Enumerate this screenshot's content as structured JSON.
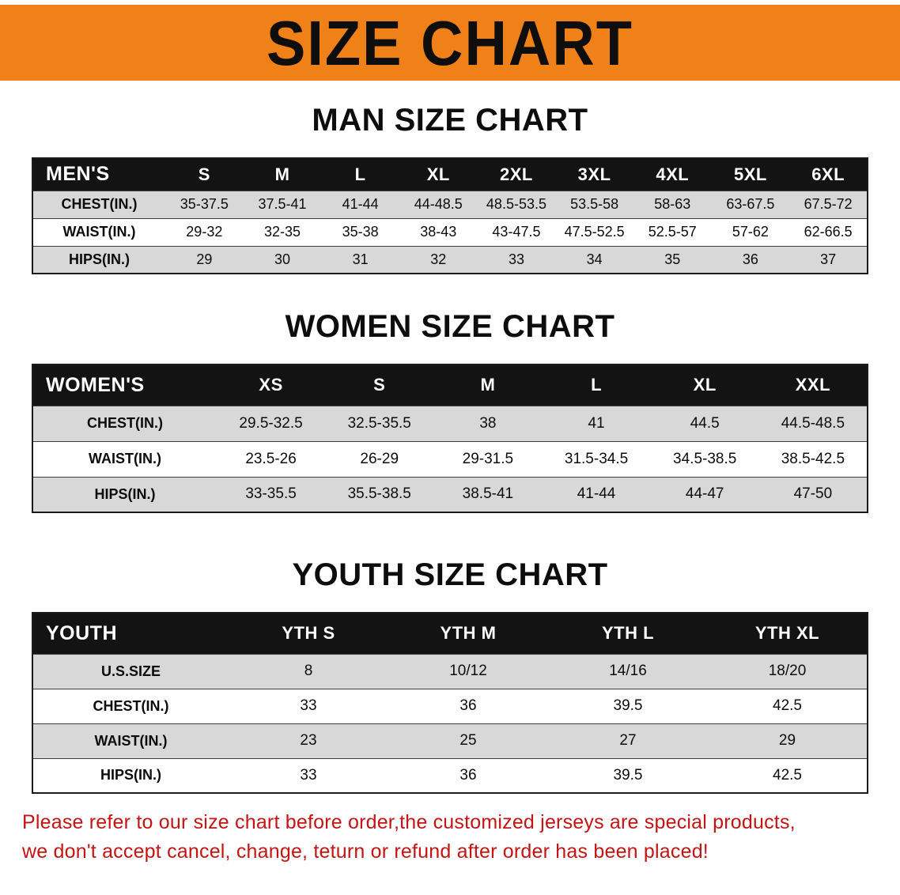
{
  "banner": {
    "title": "SIZE CHART"
  },
  "chart_data": [
    {
      "type": "table",
      "title": "MAN SIZE CHART",
      "header": [
        "MEN'S",
        "S",
        "M",
        "L",
        "XL",
        "2XL",
        "3XL",
        "4XL",
        "5XL",
        "6XL"
      ],
      "rows": [
        {
          "label": "CHEST(IN.)",
          "values": [
            "35-37.5",
            "37.5-41",
            "41-44",
            "44-48.5",
            "48.5-53.5",
            "53.5-58",
            "58-63",
            "63-67.5",
            "67.5-72"
          ]
        },
        {
          "label": "WAIST(IN.)",
          "values": [
            "29-32",
            "32-35",
            "35-38",
            "38-43",
            "43-47.5",
            "47.5-52.5",
            "52.5-57",
            "57-62",
            "62-66.5"
          ]
        },
        {
          "label": "HIPS(IN.)",
          "values": [
            "29",
            "30",
            "31",
            "32",
            "33",
            "34",
            "35",
            "36",
            "37"
          ]
        }
      ]
    },
    {
      "type": "table",
      "title": "WOMEN SIZE CHART",
      "header": [
        "WOMEN'S",
        "XS",
        "S",
        "M",
        "L",
        "XL",
        "XXL"
      ],
      "rows": [
        {
          "label": "CHEST(IN.)",
          "values": [
            "29.5-32.5",
            "32.5-35.5",
            "38",
            "41",
            "44.5",
            "44.5-48.5"
          ]
        },
        {
          "label": "WAIST(IN.)",
          "values": [
            "23.5-26",
            "26-29",
            "29-31.5",
            "31.5-34.5",
            "34.5-38.5",
            "38.5-42.5"
          ]
        },
        {
          "label": "HIPS(IN.)",
          "values": [
            "33-35.5",
            "35.5-38.5",
            "38.5-41",
            "41-44",
            "44-47",
            "47-50"
          ]
        }
      ]
    },
    {
      "type": "table",
      "title": "YOUTH SIZE CHART",
      "header": [
        "YOUTH",
        "YTH S",
        "YTH M",
        "YTH L",
        "YTH XL"
      ],
      "rows": [
        {
          "label": "U.S.SIZE",
          "values": [
            "8",
            "10/12",
            "14/16",
            "18/20"
          ]
        },
        {
          "label": "CHEST(IN.)",
          "values": [
            "33",
            "36",
            "39.5",
            "42.5"
          ]
        },
        {
          "label": "WAIST(IN.)",
          "values": [
            "23",
            "25",
            "27",
            "29"
          ]
        },
        {
          "label": "HIPS(IN.)",
          "values": [
            "33",
            "36",
            "39.5",
            "42.5"
          ]
        }
      ]
    }
  ],
  "footer": {
    "line1": "Please refer to our size chart before order,the customized jerseys are special products,",
    "line2": "we don't accept cancel, change, teturn or refund after order has been placed!"
  },
  "colors": {
    "banner_bg": "#f08119",
    "table_header_bg": "#131313",
    "row_alt_bg": "#d8d8d8",
    "notice_text": "#c51414"
  }
}
